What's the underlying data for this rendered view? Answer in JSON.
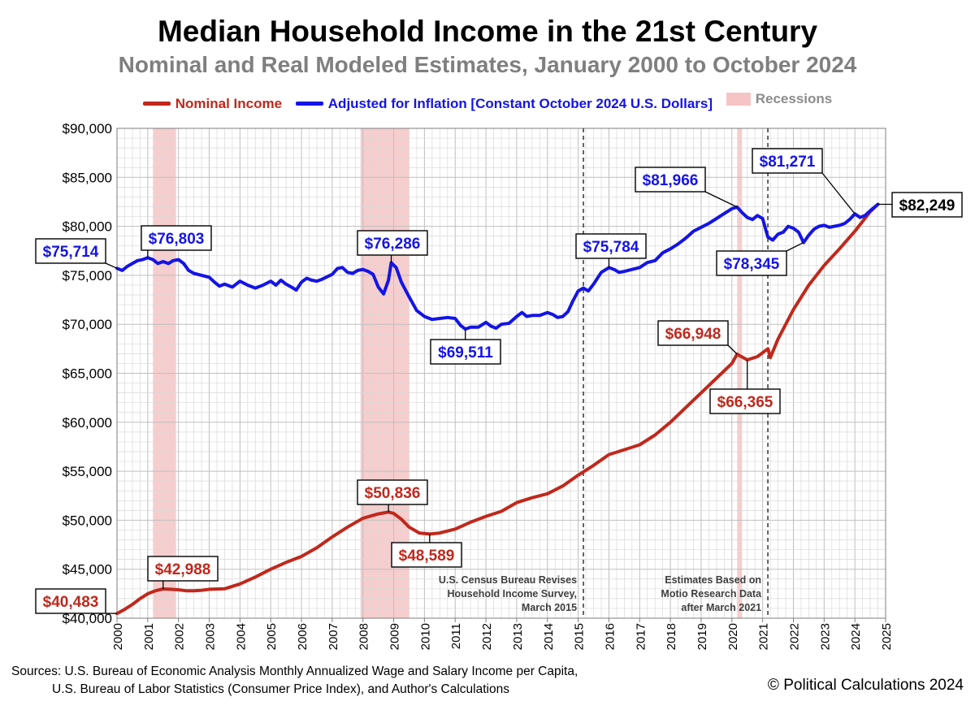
{
  "chart_data": {
    "type": "line",
    "title": "Median Household Income in the 21st Century",
    "subtitle": "Nominal and Real Modeled Estimates, January 2000 to October 2024",
    "xlabel": "",
    "ylabel": "",
    "xlim": [
      2000,
      2025
    ],
    "ylim": [
      40000,
      90000
    ],
    "x_ticks": [
      "2000",
      "2001",
      "2002",
      "2003",
      "2004",
      "2005",
      "2006",
      "2007",
      "2008",
      "2009",
      "2010",
      "2011",
      "2012",
      "2013",
      "2014",
      "2015",
      "2016",
      "2017",
      "2018",
      "2019",
      "2020",
      "2021",
      "2022",
      "2023",
      "2024",
      "2025"
    ],
    "y_ticks": [
      "$40,000",
      "$45,000",
      "$50,000",
      "$55,000",
      "$60,000",
      "$65,000",
      "$70,000",
      "$75,000",
      "$80,000",
      "$85,000",
      "$90,000"
    ],
    "grid": true,
    "legend_position": "top-center",
    "legend": {
      "nominal": "Nominal Income",
      "real": "Adjusted for Inflation [Constant October 2024 U.S. Dollars]",
      "recessions": "Recessions"
    },
    "recessions": [
      [
        2001.17,
        2001.92
      ],
      [
        2007.92,
        2009.5
      ],
      [
        2020.17,
        2020.33
      ]
    ],
    "series": [
      {
        "name": "Nominal Income",
        "color": "#c0281c",
        "points": [
          [
            2000.0,
            40483
          ],
          [
            2000.25,
            40900
          ],
          [
            2000.5,
            41400
          ],
          [
            2000.75,
            42000
          ],
          [
            2001.0,
            42500
          ],
          [
            2001.25,
            42800
          ],
          [
            2001.5,
            42988
          ],
          [
            2001.75,
            42950
          ],
          [
            2002.0,
            42900
          ],
          [
            2002.25,
            42800
          ],
          [
            2002.5,
            42800
          ],
          [
            2002.75,
            42850
          ],
          [
            2003.0,
            42950
          ],
          [
            2003.5,
            43000
          ],
          [
            2004.0,
            43500
          ],
          [
            2004.5,
            44200
          ],
          [
            2005.0,
            45000
          ],
          [
            2005.5,
            45700
          ],
          [
            2006.0,
            46300
          ],
          [
            2006.5,
            47200
          ],
          [
            2007.0,
            48300
          ],
          [
            2007.5,
            49300
          ],
          [
            2008.0,
            50200
          ],
          [
            2008.5,
            50650
          ],
          [
            2008.83,
            50836
          ],
          [
            2009.0,
            50700
          ],
          [
            2009.25,
            50100
          ],
          [
            2009.5,
            49300
          ],
          [
            2009.83,
            48700
          ],
          [
            2010.17,
            48589
          ],
          [
            2010.5,
            48700
          ],
          [
            2011.0,
            49100
          ],
          [
            2011.5,
            49800
          ],
          [
            2012.0,
            50400
          ],
          [
            2012.5,
            50900
          ],
          [
            2013.0,
            51800
          ],
          [
            2013.5,
            52300
          ],
          [
            2014.0,
            52700
          ],
          [
            2014.5,
            53500
          ],
          [
            2015.0,
            54600
          ],
          [
            2015.5,
            55600
          ],
          [
            2016.0,
            56700
          ],
          [
            2016.5,
            57200
          ],
          [
            2017.0,
            57700
          ],
          [
            2017.5,
            58700
          ],
          [
            2018.0,
            60000
          ],
          [
            2018.5,
            61500
          ],
          [
            2019.0,
            63000
          ],
          [
            2019.5,
            64500
          ],
          [
            2020.0,
            66000
          ],
          [
            2020.17,
            66948
          ],
          [
            2020.5,
            66365
          ],
          [
            2020.83,
            66700
          ],
          [
            2021.17,
            67500
          ],
          [
            2021.25,
            66600
          ],
          [
            2021.5,
            68500
          ],
          [
            2022.0,
            71500
          ],
          [
            2022.5,
            74000
          ],
          [
            2023.0,
            76000
          ],
          [
            2023.5,
            77700
          ],
          [
            2024.0,
            79500
          ],
          [
            2024.5,
            81500
          ],
          [
            2024.75,
            82249
          ]
        ]
      },
      {
        "name": "Adjusted for Inflation [Constant October 2024 U.S. Dollars]",
        "color": "#1414e6",
        "points": [
          [
            2000.0,
            75714
          ],
          [
            2000.17,
            75500
          ],
          [
            2000.33,
            75900
          ],
          [
            2000.5,
            76200
          ],
          [
            2000.67,
            76500
          ],
          [
            2000.83,
            76600
          ],
          [
            2001.0,
            76803
          ],
          [
            2001.17,
            76600
          ],
          [
            2001.33,
            76200
          ],
          [
            2001.5,
            76400
          ],
          [
            2001.67,
            76200
          ],
          [
            2001.83,
            76500
          ],
          [
            2002.0,
            76600
          ],
          [
            2002.17,
            76200
          ],
          [
            2002.33,
            75500
          ],
          [
            2002.5,
            75200
          ],
          [
            2002.75,
            75000
          ],
          [
            2003.0,
            74800
          ],
          [
            2003.17,
            74300
          ],
          [
            2003.33,
            73900
          ],
          [
            2003.5,
            74100
          ],
          [
            2003.75,
            73800
          ],
          [
            2004.0,
            74400
          ],
          [
            2004.25,
            74000
          ],
          [
            2004.5,
            73700
          ],
          [
            2004.75,
            74000
          ],
          [
            2005.0,
            74400
          ],
          [
            2005.17,
            74000
          ],
          [
            2005.33,
            74500
          ],
          [
            2005.5,
            74100
          ],
          [
            2005.67,
            73800
          ],
          [
            2005.83,
            73500
          ],
          [
            2006.0,
            74300
          ],
          [
            2006.17,
            74700
          ],
          [
            2006.33,
            74500
          ],
          [
            2006.5,
            74400
          ],
          [
            2006.67,
            74600
          ],
          [
            2007.0,
            75100
          ],
          [
            2007.17,
            75700
          ],
          [
            2007.33,
            75800
          ],
          [
            2007.5,
            75300
          ],
          [
            2007.67,
            75200
          ],
          [
            2007.83,
            75500
          ],
          [
            2008.0,
            75600
          ],
          [
            2008.17,
            75400
          ],
          [
            2008.33,
            75100
          ],
          [
            2008.5,
            73800
          ],
          [
            2008.67,
            73100
          ],
          [
            2008.83,
            74500
          ],
          [
            2008.92,
            76286
          ],
          [
            2009.08,
            75800
          ],
          [
            2009.25,
            74300
          ],
          [
            2009.5,
            72800
          ],
          [
            2009.75,
            71400
          ],
          [
            2010.0,
            70800
          ],
          [
            2010.25,
            70500
          ],
          [
            2010.5,
            70600
          ],
          [
            2010.75,
            70700
          ],
          [
            2011.0,
            70600
          ],
          [
            2011.17,
            69900
          ],
          [
            2011.33,
            69511
          ],
          [
            2011.5,
            69700
          ],
          [
            2011.75,
            69700
          ],
          [
            2012.0,
            70200
          ],
          [
            2012.17,
            69800
          ],
          [
            2012.33,
            69600
          ],
          [
            2012.5,
            70000
          ],
          [
            2012.75,
            70100
          ],
          [
            2013.0,
            70800
          ],
          [
            2013.17,
            71200
          ],
          [
            2013.33,
            70800
          ],
          [
            2013.5,
            70900
          ],
          [
            2013.75,
            70900
          ],
          [
            2014.0,
            71200
          ],
          [
            2014.17,
            71000
          ],
          [
            2014.33,
            70700
          ],
          [
            2014.5,
            70800
          ],
          [
            2014.67,
            71300
          ],
          [
            2014.83,
            72400
          ],
          [
            2015.0,
            73400
          ],
          [
            2015.17,
            73700
          ],
          [
            2015.33,
            73400
          ],
          [
            2015.5,
            74100
          ],
          [
            2015.75,
            75300
          ],
          [
            2016.0,
            75784
          ],
          [
            2016.17,
            75600
          ],
          [
            2016.33,
            75300
          ],
          [
            2016.5,
            75400
          ],
          [
            2016.75,
            75600
          ],
          [
            2017.0,
            75800
          ],
          [
            2017.25,
            76300
          ],
          [
            2017.5,
            76500
          ],
          [
            2017.75,
            77300
          ],
          [
            2018.0,
            77700
          ],
          [
            2018.25,
            78200
          ],
          [
            2018.5,
            78800
          ],
          [
            2018.75,
            79500
          ],
          [
            2019.0,
            79900
          ],
          [
            2019.25,
            80300
          ],
          [
            2019.5,
            80800
          ],
          [
            2019.75,
            81300
          ],
          [
            2020.0,
            81800
          ],
          [
            2020.17,
            81966
          ],
          [
            2020.33,
            81400
          ],
          [
            2020.5,
            80900
          ],
          [
            2020.67,
            80700
          ],
          [
            2020.83,
            81100
          ],
          [
            2021.0,
            80800
          ],
          [
            2021.17,
            78900
          ],
          [
            2021.33,
            78600
          ],
          [
            2021.5,
            79200
          ],
          [
            2021.67,
            79400
          ],
          [
            2021.83,
            80000
          ],
          [
            2022.0,
            79800
          ],
          [
            2022.17,
            79400
          ],
          [
            2022.33,
            78345
          ],
          [
            2022.5,
            79100
          ],
          [
            2022.67,
            79700
          ],
          [
            2022.83,
            80000
          ],
          [
            2023.0,
            80100
          ],
          [
            2023.17,
            79900
          ],
          [
            2023.33,
            80000
          ],
          [
            2023.5,
            80100
          ],
          [
            2023.67,
            80300
          ],
          [
            2023.83,
            80700
          ],
          [
            2024.0,
            81271
          ],
          [
            2024.17,
            80900
          ],
          [
            2024.33,
            81100
          ],
          [
            2024.5,
            81600
          ],
          [
            2024.75,
            82249
          ]
        ]
      }
    ],
    "labels": [
      {
        "id": "nominal-start",
        "text": "$40,483",
        "series": "nominal",
        "x": 2000.0,
        "y": 40483
      },
      {
        "id": "nominal-2001",
        "text": "$42,988",
        "series": "nominal",
        "x": 2001.5,
        "y": 42988
      },
      {
        "id": "nominal-peak-2008",
        "text": "$50,836",
        "series": "nominal",
        "x": 2008.83,
        "y": 50836
      },
      {
        "id": "nominal-trough-2010",
        "text": "$48,589",
        "series": "nominal",
        "x": 2010.17,
        "y": 48589
      },
      {
        "id": "nominal-2020-peak",
        "text": "$66,948",
        "series": "nominal",
        "x": 2020.17,
        "y": 66948
      },
      {
        "id": "nominal-2020-trough",
        "text": "$66,365",
        "series": "nominal",
        "x": 2020.5,
        "y": 66365
      },
      {
        "id": "real-start",
        "text": "$75,714",
        "series": "real",
        "x": 2000.0,
        "y": 75714
      },
      {
        "id": "real-2001",
        "text": "$76,803",
        "series": "real",
        "x": 2001.0,
        "y": 76803
      },
      {
        "id": "real-2009",
        "text": "$76,286",
        "series": "real",
        "x": 2008.92,
        "y": 76286
      },
      {
        "id": "real-2011",
        "text": "$69,511",
        "series": "real",
        "x": 2011.33,
        "y": 69511
      },
      {
        "id": "real-2016",
        "text": "$75,784",
        "series": "real",
        "x": 2016.0,
        "y": 75784
      },
      {
        "id": "real-2020",
        "text": "$81,966",
        "series": "real",
        "x": 2020.17,
        "y": 81966
      },
      {
        "id": "real-2022",
        "text": "$78,345",
        "series": "real",
        "x": 2022.33,
        "y": 78345
      },
      {
        "id": "real-2024",
        "text": "$81,271",
        "series": "real",
        "x": 2024.0,
        "y": 81271
      },
      {
        "id": "end-value",
        "text": "$82,249",
        "series": "end",
        "x": 2024.75,
        "y": 82249
      }
    ],
    "vertical_markers": [
      {
        "x": 2015.17,
        "lines": [
          "U.S. Census Bureau Revises",
          "Household Income Survey,",
          "March 2015"
        ]
      },
      {
        "x": 2021.17,
        "lines": [
          "Estimates Based on",
          "Motio Research Data",
          "after March 2021"
        ]
      }
    ]
  },
  "footer": {
    "sources_line1": "Sources: U.S. Bureau of Economic Analysis Monthly Annualized Wage and Salary Income per Capita,",
    "sources_line2": "U.S. Bureau of Labor Statistics (Consumer Price Index), and Author's Calculations",
    "copyright": "© Political Calculations 2024"
  },
  "colors": {
    "nominal": "#c0281c",
    "real": "#1414e6",
    "recession": "#f6c4c4",
    "grid": "#d9d9d9"
  }
}
